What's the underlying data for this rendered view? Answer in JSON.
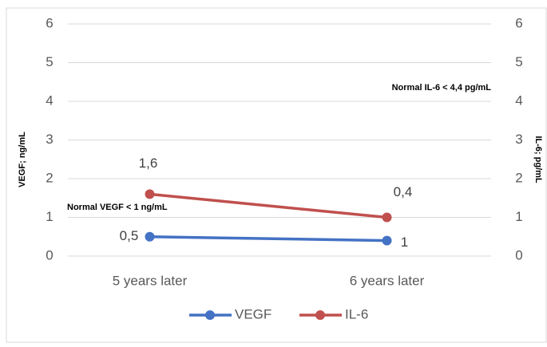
{
  "chart_data": {
    "type": "line",
    "categories": [
      "5 years later",
      "6 years later"
    ],
    "series": [
      {
        "name": "VEGF",
        "color": "#4472c4",
        "values": [
          0.5,
          0.4
        ],
        "value_labels": [
          "0,5",
          "0,4"
        ]
      },
      {
        "name": "IL-6",
        "color": "#c0504d",
        "values": [
          1.6,
          1
        ],
        "value_labels": [
          "1,6",
          "1"
        ],
        "axis": "y2"
      }
    ],
    "y_label": "VEGF; ng/mL",
    "y2_label": "IL-6; pg/mL",
    "ylim": [
      0,
      6
    ],
    "yticks": [
      0,
      1,
      2,
      3,
      4,
      5,
      6
    ],
    "y2lim": [
      0,
      6
    ],
    "y2ticks": [
      0,
      1,
      2,
      3,
      4,
      5,
      6
    ],
    "annotations": [
      "Normal IL-6 < 4,4 pg/mL",
      "Normal VEGF < 1 ng/mL"
    ],
    "grid": true,
    "legend": "bottom"
  }
}
